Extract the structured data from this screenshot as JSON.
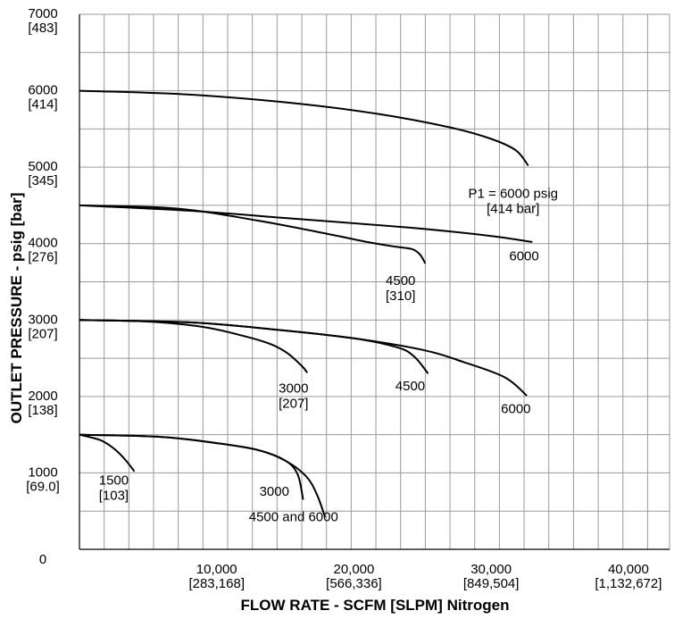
{
  "chart_data": {
    "type": "line",
    "xlabel": "FLOW RATE - SCFM [SLPM] Nitrogen",
    "ylabel": "OUTLET PRESSURE - psig [bar]",
    "xlim": [
      0,
      43000
    ],
    "ylim": [
      0,
      7000
    ],
    "grid": true,
    "x_minor_step": 1800,
    "y_minor_step": 500,
    "x_ticks": [
      {
        "value": 0,
        "label": "0",
        "sub": ""
      },
      {
        "value": 10000,
        "label": "10,000",
        "sub": "[283,168]"
      },
      {
        "value": 20000,
        "label": "20,000",
        "sub": "[566,336]"
      },
      {
        "value": 30000,
        "label": "30,000",
        "sub": "[849,504]"
      },
      {
        "value": 40000,
        "label": "40,000",
        "sub": "[1,132,672]"
      }
    ],
    "y_ticks": [
      {
        "value": 1000,
        "label": "1000",
        "sub": "[69.0]"
      },
      {
        "value": 2000,
        "label": "2000",
        "sub": "[138]"
      },
      {
        "value": 3000,
        "label": "3000",
        "sub": "[207]"
      },
      {
        "value": 4000,
        "label": "4000",
        "sub": "[276]"
      },
      {
        "value": 5000,
        "label": "5000",
        "sub": "[345]"
      },
      {
        "value": 6000,
        "label": "6000",
        "sub": "[414]"
      },
      {
        "value": 7000,
        "label": "7000",
        "sub": "[483]"
      }
    ],
    "series": [
      {
        "setpoint": 6000,
        "inlet": 6000,
        "points": [
          [
            0,
            6000
          ],
          [
            8000,
            5950
          ],
          [
            16000,
            5830
          ],
          [
            22000,
            5690
          ],
          [
            27000,
            5520
          ],
          [
            30000,
            5370
          ],
          [
            31800,
            5220
          ],
          [
            32700,
            5020
          ]
        ]
      },
      {
        "setpoint": 4500,
        "inlet": 6000,
        "points": [
          [
            0,
            4500
          ],
          [
            8000,
            4430
          ],
          [
            16000,
            4320
          ],
          [
            24000,
            4210
          ],
          [
            30000,
            4100
          ],
          [
            33000,
            4020
          ]
        ]
      },
      {
        "setpoint": 4500,
        "inlet": 4500,
        "points": [
          [
            0,
            4500
          ],
          [
            7000,
            4460
          ],
          [
            13000,
            4300
          ],
          [
            18000,
            4130
          ],
          [
            21000,
            4020
          ],
          [
            23000,
            3960
          ],
          [
            24200,
            3930
          ],
          [
            24800,
            3860
          ],
          [
            25200,
            3740
          ]
        ]
      },
      {
        "setpoint": 3000,
        "inlet": 6000,
        "points": [
          [
            0,
            3000
          ],
          [
            8000,
            2970
          ],
          [
            14000,
            2880
          ],
          [
            20000,
            2760
          ],
          [
            25000,
            2610
          ],
          [
            28000,
            2450
          ],
          [
            31000,
            2250
          ],
          [
            32600,
            2010
          ]
        ]
      },
      {
        "setpoint": 3000,
        "inlet": 4500,
        "points": [
          [
            0,
            3000
          ],
          [
            8000,
            2970
          ],
          [
            14000,
            2880
          ],
          [
            20000,
            2760
          ],
          [
            23200,
            2640
          ],
          [
            24400,
            2520
          ],
          [
            25400,
            2300
          ]
        ]
      },
      {
        "setpoint": 3000,
        "inlet": 3000,
        "points": [
          [
            0,
            3000
          ],
          [
            5000,
            2980
          ],
          [
            9000,
            2910
          ],
          [
            12000,
            2790
          ],
          [
            14000,
            2680
          ],
          [
            15200,
            2560
          ],
          [
            16200,
            2400
          ],
          [
            16600,
            2310
          ]
        ]
      },
      {
        "setpoint": 1500,
        "inlet": 6000,
        "points": [
          [
            0,
            1500
          ],
          [
            6000,
            1470
          ],
          [
            10000,
            1390
          ],
          [
            13000,
            1300
          ],
          [
            15000,
            1160
          ],
          [
            16500,
            960
          ],
          [
            17300,
            720
          ],
          [
            17900,
            420
          ]
        ]
      },
      {
        "setpoint": 1500,
        "inlet": 3000,
        "points": [
          [
            0,
            1500
          ],
          [
            6000,
            1470
          ],
          [
            10000,
            1390
          ],
          [
            13000,
            1300
          ],
          [
            15000,
            1160
          ],
          [
            15900,
            980
          ],
          [
            16300,
            650
          ]
        ]
      },
      {
        "setpoint": 1500,
        "inlet": 1500,
        "points": [
          [
            0,
            1500
          ],
          [
            1500,
            1430
          ],
          [
            2500,
            1320
          ],
          [
            3300,
            1180
          ],
          [
            4000,
            1020
          ]
        ]
      }
    ],
    "annotations": [
      {
        "lines": [
          "P1 = 6000 psig",
          "[414 bar]"
        ],
        "at": [
          31600,
          4600
        ]
      },
      {
        "lines": [
          "6000"
        ],
        "at": [
          32400,
          3780
        ]
      },
      {
        "lines": [
          "4500",
          "[310]"
        ],
        "at": [
          23400,
          3460
        ]
      },
      {
        "lines": [
          "3000",
          "[207]"
        ],
        "at": [
          15600,
          2050
        ]
      },
      {
        "lines": [
          "4500"
        ],
        "at": [
          24100,
          2080
        ]
      },
      {
        "lines": [
          "6000"
        ],
        "at": [
          31800,
          1780
        ]
      },
      {
        "lines": [
          "1500",
          "[103]"
        ],
        "at": [
          2500,
          850
        ]
      },
      {
        "lines": [
          "3000"
        ],
        "at": [
          14200,
          700
        ]
      },
      {
        "lines": [
          "4500 and 6000"
        ],
        "at": [
          15600,
          370
        ]
      }
    ]
  }
}
